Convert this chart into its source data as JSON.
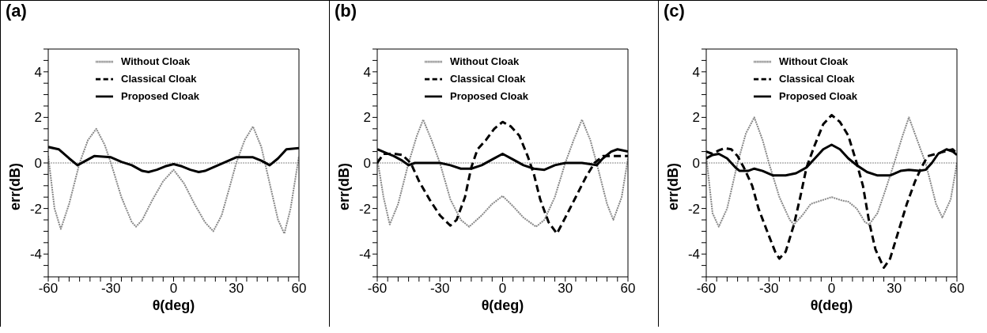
{
  "chart_data": [
    {
      "type": "line",
      "title": "(a)",
      "xlabel": "θ(deg)",
      "ylabel": "err(dB)",
      "xlim": [
        -60,
        60
      ],
      "ylim": [
        -5,
        5
      ],
      "xticks": [
        -60,
        {
          "value": -55,
          "label": null
        },
        {
          "value": -50,
          "label": null
        },
        {
          "value": -45,
          "label": null
        },
        {
          "value": -40,
          "label": null
        },
        {
          "value": -35,
          "label": null
        },
        -30,
        {
          "value": -25,
          "label": null
        },
        {
          "value": -20,
          "label": null
        },
        {
          "value": -15,
          "label": null
        },
        {
          "value": -10,
          "label": null
        },
        {
          "value": -5,
          "label": null
        },
        0,
        {
          "value": 5,
          "label": null
        },
        {
          "value": 10,
          "label": null
        },
        {
          "value": 15,
          "label": null
        },
        {
          "value": 20,
          "label": null
        },
        {
          "value": 25,
          "label": null
        },
        30,
        {
          "value": 35,
          "label": null
        },
        {
          "value": 40,
          "label": null
        },
        {
          "value": 45,
          "label": null
        },
        {
          "value": 50,
          "label": null
        },
        {
          "value": 55,
          "label": null
        },
        60
      ],
      "yticks": [
        {
          "value": -5,
          "label": null
        },
        {
          "value": -4.5,
          "label": null
        },
        -4,
        {
          "value": -3.5,
          "label": null
        },
        {
          "value": -3,
          "label": null
        },
        {
          "value": -2.5,
          "label": null
        },
        -2,
        {
          "value": -1.5,
          "label": null
        },
        {
          "value": -1,
          "label": null
        },
        {
          "value": -0.5,
          "label": null
        },
        0,
        {
          "value": 0.5,
          "label": null
        },
        {
          "value": 1,
          "label": null
        },
        {
          "value": 1.5,
          "label": null
        },
        2,
        {
          "value": 2.5,
          "label": null
        },
        {
          "value": 3,
          "label": null
        },
        {
          "value": 3.5,
          "label": null
        },
        4,
        {
          "value": 4.5,
          "label": null
        },
        {
          "value": 5,
          "label": null
        }
      ],
      "legend": "top",
      "ref_lines": [
        {
          "axis": "y",
          "value": 0,
          "color": "#888888",
          "line_style": "dotted"
        }
      ],
      "series": [
        {
          "name": "Without Cloak",
          "color": "#888888",
          "line_style": "dotted",
          "x": [
            -60,
            -57,
            -54,
            -50,
            -45,
            -41,
            -37,
            -33,
            -30,
            -25,
            -20,
            -18,
            -15,
            -10,
            -5,
            0,
            5,
            10,
            15,
            19,
            23,
            27,
            30,
            34,
            38,
            42,
            45,
            50,
            53,
            56,
            60
          ],
          "values": [
            0.3,
            -2,
            -2.9,
            -1.8,
            0,
            1,
            1.5,
            0.8,
            0,
            -1.5,
            -2.6,
            -2.8,
            -2.5,
            -1.6,
            -0.8,
            -0.3,
            -0.9,
            -1.8,
            -2.6,
            -3,
            -2.3,
            -1,
            0,
            1,
            1.6,
            0.7,
            -0.5,
            -2.5,
            -3.1,
            -2,
            0.3
          ]
        },
        {
          "name": "Classical Cloak",
          "color": "#000000",
          "line_style": "dashed"
        },
        {
          "name": "Proposed Cloak",
          "color": "#000000",
          "line_style": "solid",
          "x": [
            -60,
            -55,
            -50,
            -46,
            -42,
            -38,
            -30,
            -25,
            -20,
            -15,
            -12,
            -8,
            -4,
            0,
            4,
            8,
            12,
            15,
            20,
            25,
            30,
            38,
            42,
            46,
            50,
            54,
            60
          ],
          "values": [
            0.7,
            0.6,
            0.2,
            -0.1,
            0.1,
            0.3,
            0.25,
            0.05,
            -0.1,
            -0.35,
            -0.4,
            -0.3,
            -0.15,
            -0.05,
            -0.15,
            -0.3,
            -0.4,
            -0.35,
            -0.15,
            0.05,
            0.25,
            0.25,
            0.1,
            -0.1,
            0.2,
            0.6,
            0.65
          ]
        }
      ]
    },
    {
      "type": "line",
      "title": "(b)",
      "xlabel": "θ(deg)",
      "ylabel": "err(dB)",
      "xlim": [
        -60,
        60
      ],
      "ylim": [
        -5,
        5
      ],
      "xticks": [
        -60,
        {
          "value": -55,
          "label": null
        },
        {
          "value": -50,
          "label": null
        },
        {
          "value": -45,
          "label": null
        },
        {
          "value": -40,
          "label": null
        },
        {
          "value": -35,
          "label": null
        },
        -30,
        {
          "value": -25,
          "label": null
        },
        {
          "value": -20,
          "label": null
        },
        {
          "value": -15,
          "label": null
        },
        {
          "value": -10,
          "label": null
        },
        {
          "value": -5,
          "label": null
        },
        0,
        {
          "value": 5,
          "label": null
        },
        {
          "value": 10,
          "label": null
        },
        {
          "value": 15,
          "label": null
        },
        {
          "value": 20,
          "label": null
        },
        {
          "value": 25,
          "label": null
        },
        30,
        {
          "value": 35,
          "label": null
        },
        {
          "value": 40,
          "label": null
        },
        {
          "value": 45,
          "label": null
        },
        {
          "value": 50,
          "label": null
        },
        {
          "value": 55,
          "label": null
        },
        60
      ],
      "yticks": [
        {
          "value": -5,
          "label": null
        },
        {
          "value": -4.5,
          "label": null
        },
        -4,
        {
          "value": -3.5,
          "label": null
        },
        {
          "value": -3,
          "label": null
        },
        {
          "value": -2.5,
          "label": null
        },
        -2,
        {
          "value": -1.5,
          "label": null
        },
        {
          "value": -1,
          "label": null
        },
        {
          "value": -0.5,
          "label": null
        },
        0,
        {
          "value": 0.5,
          "label": null
        },
        {
          "value": 1,
          "label": null
        },
        {
          "value": 1.5,
          "label": null
        },
        2,
        {
          "value": 2.5,
          "label": null
        },
        {
          "value": 3,
          "label": null
        },
        {
          "value": 3.5,
          "label": null
        },
        4,
        {
          "value": 4.5,
          "label": null
        },
        {
          "value": 5,
          "label": null
        }
      ],
      "legend": "top",
      "ref_lines": [
        {
          "axis": "y",
          "value": 0,
          "color": "#888888",
          "line_style": "dotted"
        }
      ],
      "series": [
        {
          "name": "Without Cloak",
          "color": "#888888",
          "line_style": "dotted",
          "x": [
            -60,
            -57,
            -54,
            -50,
            -45,
            -41,
            -38,
            -34,
            -30,
            -25,
            -20,
            -16,
            -10,
            -5,
            0,
            5,
            10,
            16,
            20,
            25,
            30,
            34,
            38,
            42,
            45,
            50,
            53,
            57,
            60
          ],
          "values": [
            0.2,
            -1.5,
            -2.7,
            -1.8,
            0,
            1.2,
            1.9,
            1,
            0,
            -1.6,
            -2.5,
            -2.8,
            -2.3,
            -1.8,
            -1.45,
            -1.9,
            -2.4,
            -2.8,
            -2.5,
            -1.5,
            0,
            1,
            1.9,
            1,
            0,
            -1.8,
            -2.5,
            -1.5,
            0.2
          ]
        },
        {
          "name": "Classical Cloak",
          "color": "#000000",
          "line_style": "dashed",
          "x": [
            -60,
            -57,
            -52,
            -48,
            -44,
            -40,
            -35,
            -30,
            -25,
            -22,
            -18,
            -15,
            -12,
            -8,
            -4,
            0,
            4,
            8,
            12,
            15,
            18,
            22,
            26,
            30,
            35,
            40,
            44,
            48,
            53,
            60
          ],
          "values": [
            0,
            0.4,
            0.4,
            0.35,
            0,
            -0.8,
            -1.6,
            -2.3,
            -2.75,
            -2.5,
            -1.5,
            -0.2,
            0.6,
            1,
            1.5,
            1.8,
            1.6,
            1.2,
            0.3,
            -0.5,
            -1.6,
            -2.6,
            -3.1,
            -2.4,
            -1.5,
            -0.6,
            0,
            0.3,
            0.3,
            0.3
          ]
        },
        {
          "name": "Proposed Cloak",
          "color": "#000000",
          "line_style": "solid",
          "x": [
            -60,
            -56,
            -52,
            -48,
            -45,
            -42,
            -38,
            -30,
            -25,
            -20,
            -15,
            -10,
            -5,
            0,
            5,
            10,
            15,
            20,
            25,
            30,
            38,
            42,
            45,
            48,
            52,
            55,
            60
          ],
          "values": [
            0.6,
            0.45,
            0.3,
            0.1,
            -0.1,
            0,
            0,
            0,
            -0.1,
            -0.25,
            -0.25,
            -0.1,
            0.15,
            0.4,
            0.15,
            -0.1,
            -0.25,
            -0.3,
            -0.1,
            0,
            0,
            -0.05,
            -0.1,
            0.2,
            0.5,
            0.6,
            0.5
          ]
        }
      ]
    },
    {
      "type": "line",
      "title": "(c)",
      "xlabel": "θ(deg)",
      "ylabel": "err(dB)",
      "xlim": [
        -60,
        60
      ],
      "ylim": [
        -5,
        5
      ],
      "xticks": [
        -60,
        {
          "value": -55,
          "label": null
        },
        {
          "value": -50,
          "label": null
        },
        {
          "value": -45,
          "label": null
        },
        {
          "value": -40,
          "label": null
        },
        {
          "value": -35,
          "label": null
        },
        -30,
        {
          "value": -25,
          "label": null
        },
        {
          "value": -20,
          "label": null
        },
        {
          "value": -15,
          "label": null
        },
        {
          "value": -10,
          "label": null
        },
        {
          "value": -5,
          "label": null
        },
        0,
        {
          "value": 5,
          "label": null
        },
        {
          "value": 10,
          "label": null
        },
        {
          "value": 15,
          "label": null
        },
        {
          "value": 20,
          "label": null
        },
        {
          "value": 25,
          "label": null
        },
        30,
        {
          "value": 35,
          "label": null
        },
        {
          "value": 40,
          "label": null
        },
        {
          "value": 45,
          "label": null
        },
        {
          "value": 50,
          "label": null
        },
        {
          "value": 55,
          "label": null
        },
        60
      ],
      "yticks": [
        {
          "value": -5,
          "label": null
        },
        {
          "value": -4.5,
          "label": null
        },
        -4,
        {
          "value": -3.5,
          "label": null
        },
        {
          "value": -3,
          "label": null
        },
        {
          "value": -2.5,
          "label": null
        },
        -2,
        {
          "value": -1.5,
          "label": null
        },
        {
          "value": -1,
          "label": null
        },
        {
          "value": -0.5,
          "label": null
        },
        0,
        {
          "value": 0.5,
          "label": null
        },
        {
          "value": 1,
          "label": null
        },
        {
          "value": 1.5,
          "label": null
        },
        2,
        {
          "value": 2.5,
          "label": null
        },
        {
          "value": 3,
          "label": null
        },
        {
          "value": 3.5,
          "label": null
        },
        4,
        {
          "value": 4.5,
          "label": null
        },
        {
          "value": 5,
          "label": null
        }
      ],
      "legend": "top",
      "ref_lines": [
        {
          "axis": "y",
          "value": 0,
          "color": "#888888",
          "line_style": "dotted"
        }
      ],
      "series": [
        {
          "name": "Without Cloak",
          "color": "#888888",
          "line_style": "dotted",
          "x": [
            -60,
            -57,
            -54,
            -50,
            -45,
            -41,
            -37,
            -33,
            -30,
            -25,
            -20,
            -18,
            -14,
            -10,
            -5,
            0,
            5,
            8,
            12,
            16,
            18,
            22,
            25,
            30,
            34,
            37,
            41,
            45,
            50,
            53,
            57,
            60
          ],
          "values": [
            0.3,
            -2.2,
            -2.8,
            -2,
            0,
            1.3,
            2,
            1,
            0,
            -1.5,
            -2.5,
            -2.7,
            -2.3,
            -1.8,
            -1.65,
            -1.5,
            -1.65,
            -1.7,
            -2,
            -2.6,
            -2.7,
            -2.2,
            -1.4,
            0,
            1.2,
            2,
            1,
            0,
            -1.8,
            -2.4,
            -1.6,
            0
          ]
        },
        {
          "name": "Classical Cloak",
          "color": "#000000",
          "line_style": "dashed",
          "x": [
            -60,
            -57,
            -54,
            -51,
            -48,
            -45,
            -42,
            -38,
            -35,
            -30,
            -27,
            -25,
            -22,
            -18,
            -15,
            -12,
            -8,
            -4,
            0,
            4,
            8,
            12,
            15,
            18,
            21,
            25,
            28,
            32,
            36,
            40,
            43,
            46,
            50,
            54,
            58,
            60
          ],
          "values": [
            0.5,
            0.4,
            0.55,
            0.65,
            0.6,
            0.3,
            -0.2,
            -1,
            -2,
            -3.2,
            -3.9,
            -4.2,
            -3.9,
            -2.7,
            -1.5,
            -0.2,
            0.8,
            1.7,
            2.1,
            1.8,
            1.2,
            0,
            -1,
            -2.6,
            -3.8,
            -4.6,
            -4.2,
            -3,
            -1.8,
            -0.8,
            -0.2,
            0.3,
            0.4,
            0.5,
            0.6,
            0.4
          ]
        },
        {
          "name": "Proposed Cloak",
          "color": "#000000",
          "line_style": "solid",
          "x": [
            -60,
            -57,
            -54,
            -50,
            -46,
            -44,
            -40,
            -37,
            -33,
            -28,
            -22,
            -17,
            -12,
            -8,
            -4,
            0,
            4,
            8,
            12,
            17,
            22,
            28,
            33,
            37,
            42,
            45,
            48,
            51,
            55,
            58,
            60
          ],
          "values": [
            0.2,
            0.35,
            0.4,
            0.2,
            -0.2,
            -0.35,
            -0.35,
            -0.25,
            -0.35,
            -0.55,
            -0.55,
            -0.45,
            -0.2,
            0.2,
            0.6,
            0.8,
            0.6,
            0.2,
            -0.1,
            -0.4,
            -0.55,
            -0.55,
            -0.35,
            -0.3,
            -0.35,
            -0.3,
            0,
            0.4,
            0.6,
            0.5,
            0.35
          ]
        }
      ]
    }
  ]
}
